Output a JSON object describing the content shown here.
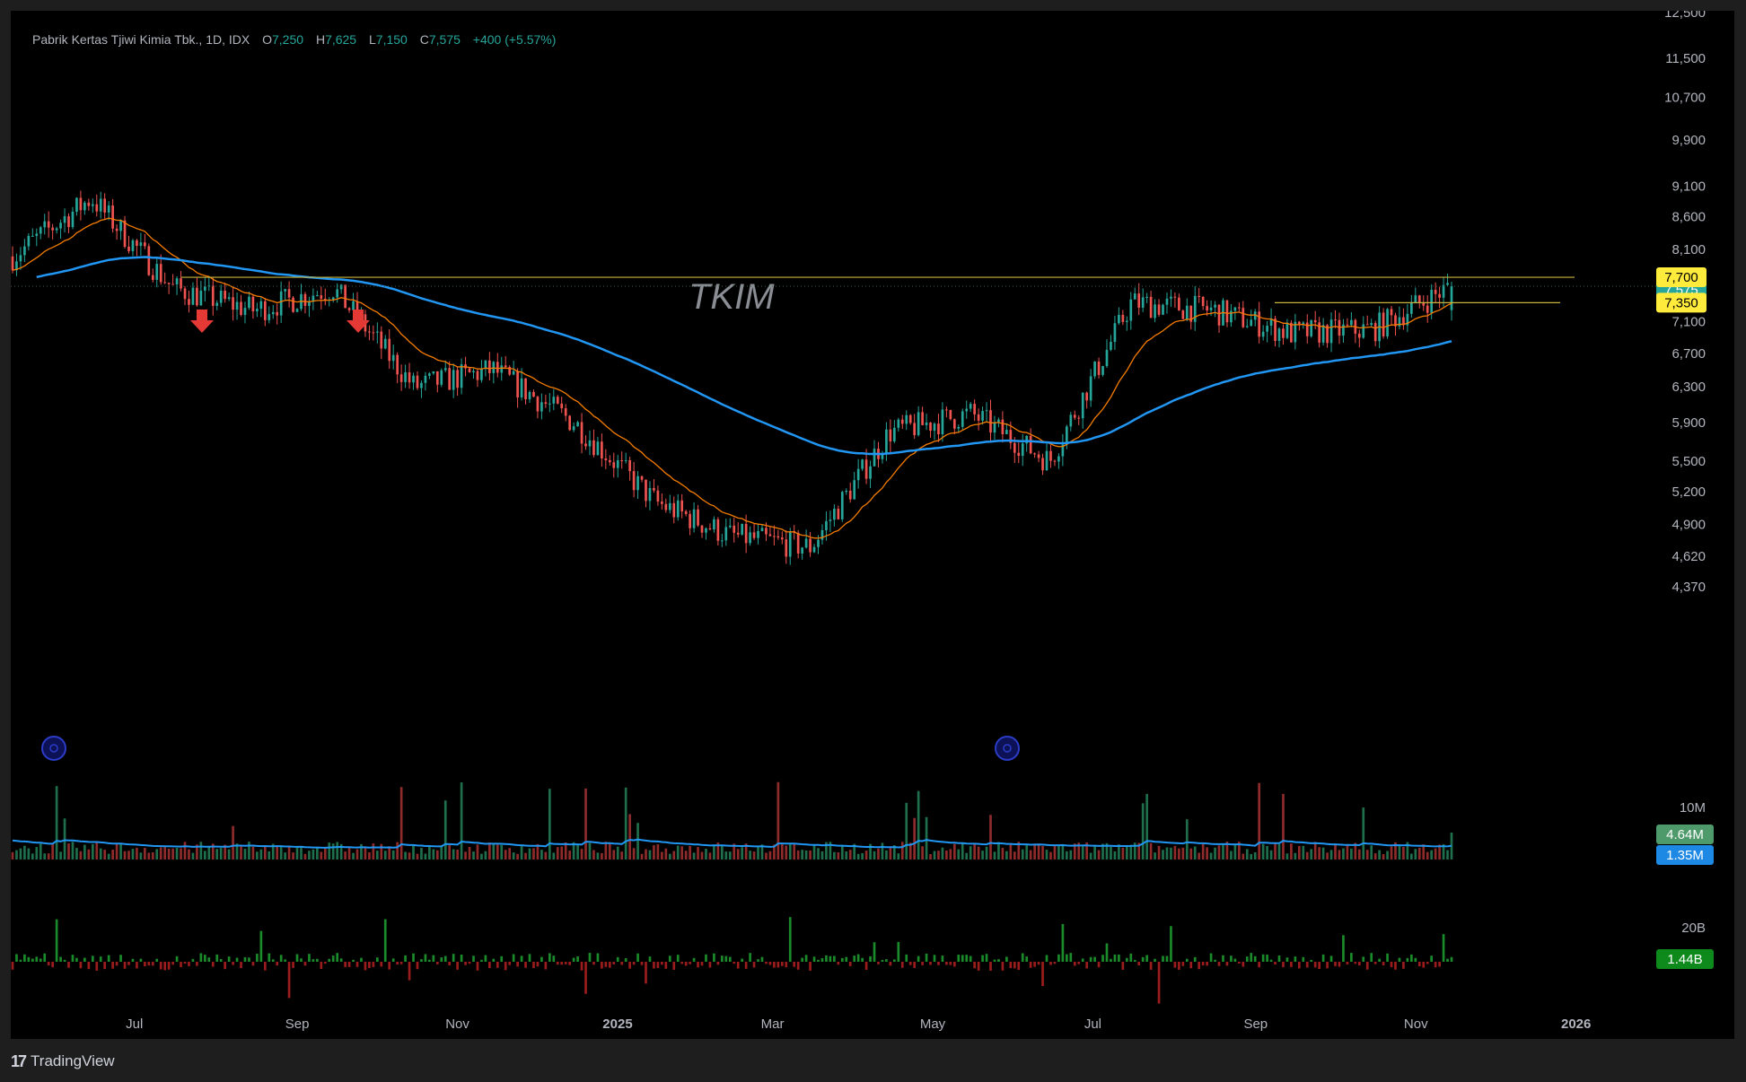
{
  "legend": {
    "name": "Pabrik Kertas Tjiwi Kimia Tbk., 1D, IDX",
    "open_label": "O",
    "open": "7,250",
    "high_label": "H",
    "high": "7,625",
    "low_label": "L",
    "low": "7,150",
    "close_label": "C",
    "close": "7,575",
    "change": "+400 (+5.57%)"
  },
  "watermark": "TKIM",
  "footer": {
    "brand": "TradingView"
  },
  "colors": {
    "up": "#26a69a",
    "down": "#ef5350",
    "ema_fast": "#f57c00",
    "ma_slow": "#2196f3",
    "level_line": "#c9b33a",
    "volume_tag": "#4caf50",
    "volume_ma_tag": "#2196f3",
    "value_tag": "#0e8a1c",
    "arrow": "#e53935",
    "marker": "#1a237e"
  },
  "chart_data": {
    "type": "candlestick",
    "price_scale": "log",
    "y_ticks": [
      4370,
      4620,
      4900,
      5200,
      5500,
      5900,
      6300,
      6700,
      7100,
      8100,
      8600,
      9100,
      9900,
      10700,
      11500,
      12500
    ],
    "y_tick_labels": [
      "4,370",
      "4,620",
      "4,900",
      "5,200",
      "5,500",
      "5,900",
      "6,300",
      "6,700",
      "7,100",
      "8,100",
      "8,600",
      "9,100",
      "9,900",
      "10,700",
      "11,500",
      "12,500"
    ],
    "x_ticks": [
      "Jul",
      "Sep",
      "Nov",
      "2025",
      "Mar",
      "May",
      "Jul",
      "Sep",
      "Nov",
      "2026"
    ],
    "ohlc_anchors": [
      {
        "date": "2024-06",
        "close": 8000
      },
      {
        "date": "2024-07",
        "close": 8900
      },
      {
        "date": "2024-08",
        "close": 7550
      },
      {
        "date": "2024-09",
        "close": 7250
      },
      {
        "date": "2024-10",
        "close": 7550
      },
      {
        "date": "2024-11",
        "close": 6300
      },
      {
        "date": "2024-12",
        "close": 6500
      },
      {
        "date": "2025-01",
        "close": 5900
      },
      {
        "date": "2025-02",
        "close": 5100
      },
      {
        "date": "2025-03",
        "close": 4800
      },
      {
        "date": "2025-04",
        "close": 4700
      },
      {
        "date": "2025-05",
        "close": 5800
      },
      {
        "date": "2025-06",
        "close": 6000
      },
      {
        "date": "2025-07",
        "close": 5500
      },
      {
        "date": "2025-08",
        "close": 7350
      },
      {
        "date": "2025-09",
        "close": 7250
      },
      {
        "date": "2025-10",
        "close": 6950
      },
      {
        "date": "2025-11",
        "close": 7000
      },
      {
        "date": "2025-12",
        "close": 7575
      }
    ],
    "horizontal_levels": [
      {
        "value": 7700,
        "label": "7,700"
      },
      {
        "value": 7350,
        "label": "7,350"
      }
    ],
    "last_price_label": "7,575",
    "indicators": [
      "EMA (orange)",
      "MA 200 (blue)"
    ],
    "volume": {
      "tick_label": "10M",
      "last_label": "4.64M",
      "ma_label": "1.35M"
    },
    "value_traded": {
      "tick_label": "20B",
      "last_label": "1.44B"
    }
  }
}
